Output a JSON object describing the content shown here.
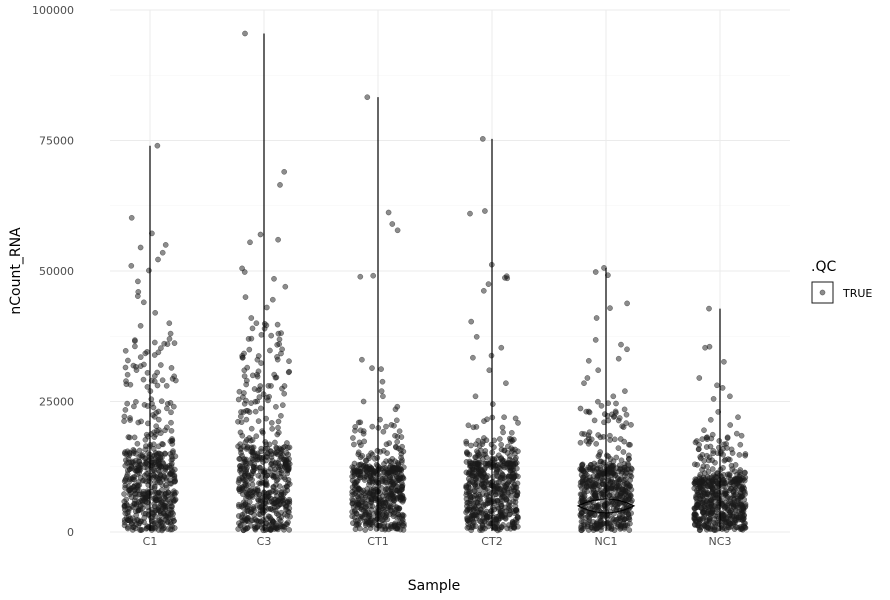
{
  "chart_data": {
    "type": "violin+jitter",
    "title": "",
    "xlabel": "Sample",
    "ylabel": "nCount_RNA",
    "categories": [
      "C1",
      "C3",
      "CT1",
      "CT2",
      "NC1",
      "NC3"
    ],
    "ylim": [
      0,
      100000
    ],
    "yticks": [
      0,
      25000,
      50000,
      75000,
      100000
    ],
    "ytick_labels": [
      "0",
      "25000",
      "50000",
      "75000",
      "100000"
    ],
    "grid": true,
    "legend": {
      "title": ".QC",
      "entries": [
        "TRUE"
      ],
      "placement": "right"
    },
    "point_color": "#1a1a1a",
    "point_alpha": 0.5,
    "max_values": [
      74000,
      95500,
      83300,
      75300,
      50600,
      42800
    ],
    "series": [
      {
        "category": "C1",
        "dense_max": 15000,
        "sparse_max": 38000,
        "outliers": [
          74000,
          60200,
          57200,
          55000,
          54500,
          53500,
          52200,
          51000,
          50100,
          48000,
          46000,
          45200,
          44000,
          42000,
          40000,
          39500,
          38000,
          37000,
          36000,
          34500,
          33500,
          32000,
          30500,
          29000,
          28000,
          27000
        ]
      },
      {
        "category": "C3",
        "dense_max": 16000,
        "sparse_max": 40000,
        "outliers": [
          95500,
          69000,
          66500,
          57000,
          56000,
          55500,
          50500,
          49800,
          48500,
          47000,
          45000,
          44500,
          43000,
          41000,
          40000,
          39000,
          38000,
          37000,
          36000,
          35000,
          33000,
          31500,
          30000,
          29000,
          28000
        ]
      },
      {
        "category": "CT1",
        "dense_max": 12000,
        "sparse_max": 22000,
        "outliers": [
          83300,
          61200,
          59000,
          57800,
          49100,
          48900,
          33000,
          31400,
          31200,
          28800,
          27000,
          26000,
          25000,
          24000,
          23500
        ]
      },
      {
        "category": "CT2",
        "dense_max": 13000,
        "sparse_max": 22000,
        "outliers": [
          75300,
          61500,
          61000,
          51200,
          49000,
          48700,
          48600,
          47500,
          46200,
          40300,
          37400,
          35300,
          33800,
          33400,
          31000,
          28500,
          26000,
          24500
        ]
      },
      {
        "category": "NC1",
        "dense_max": 12000,
        "sparse_max": 25000,
        "outliers": [
          50600,
          49800,
          49200,
          43800,
          42900,
          41000,
          36800,
          35900,
          35000,
          33200,
          32800,
          31000,
          29500,
          28500,
          27000,
          26000
        ]
      },
      {
        "category": "NC3",
        "dense_max": 10000,
        "sparse_max": 19000,
        "outliers": [
          42800,
          35500,
          35300,
          32600,
          29500,
          28100,
          27600,
          26000,
          25500,
          23000,
          22000,
          21500,
          20500,
          19500
        ]
      }
    ]
  }
}
